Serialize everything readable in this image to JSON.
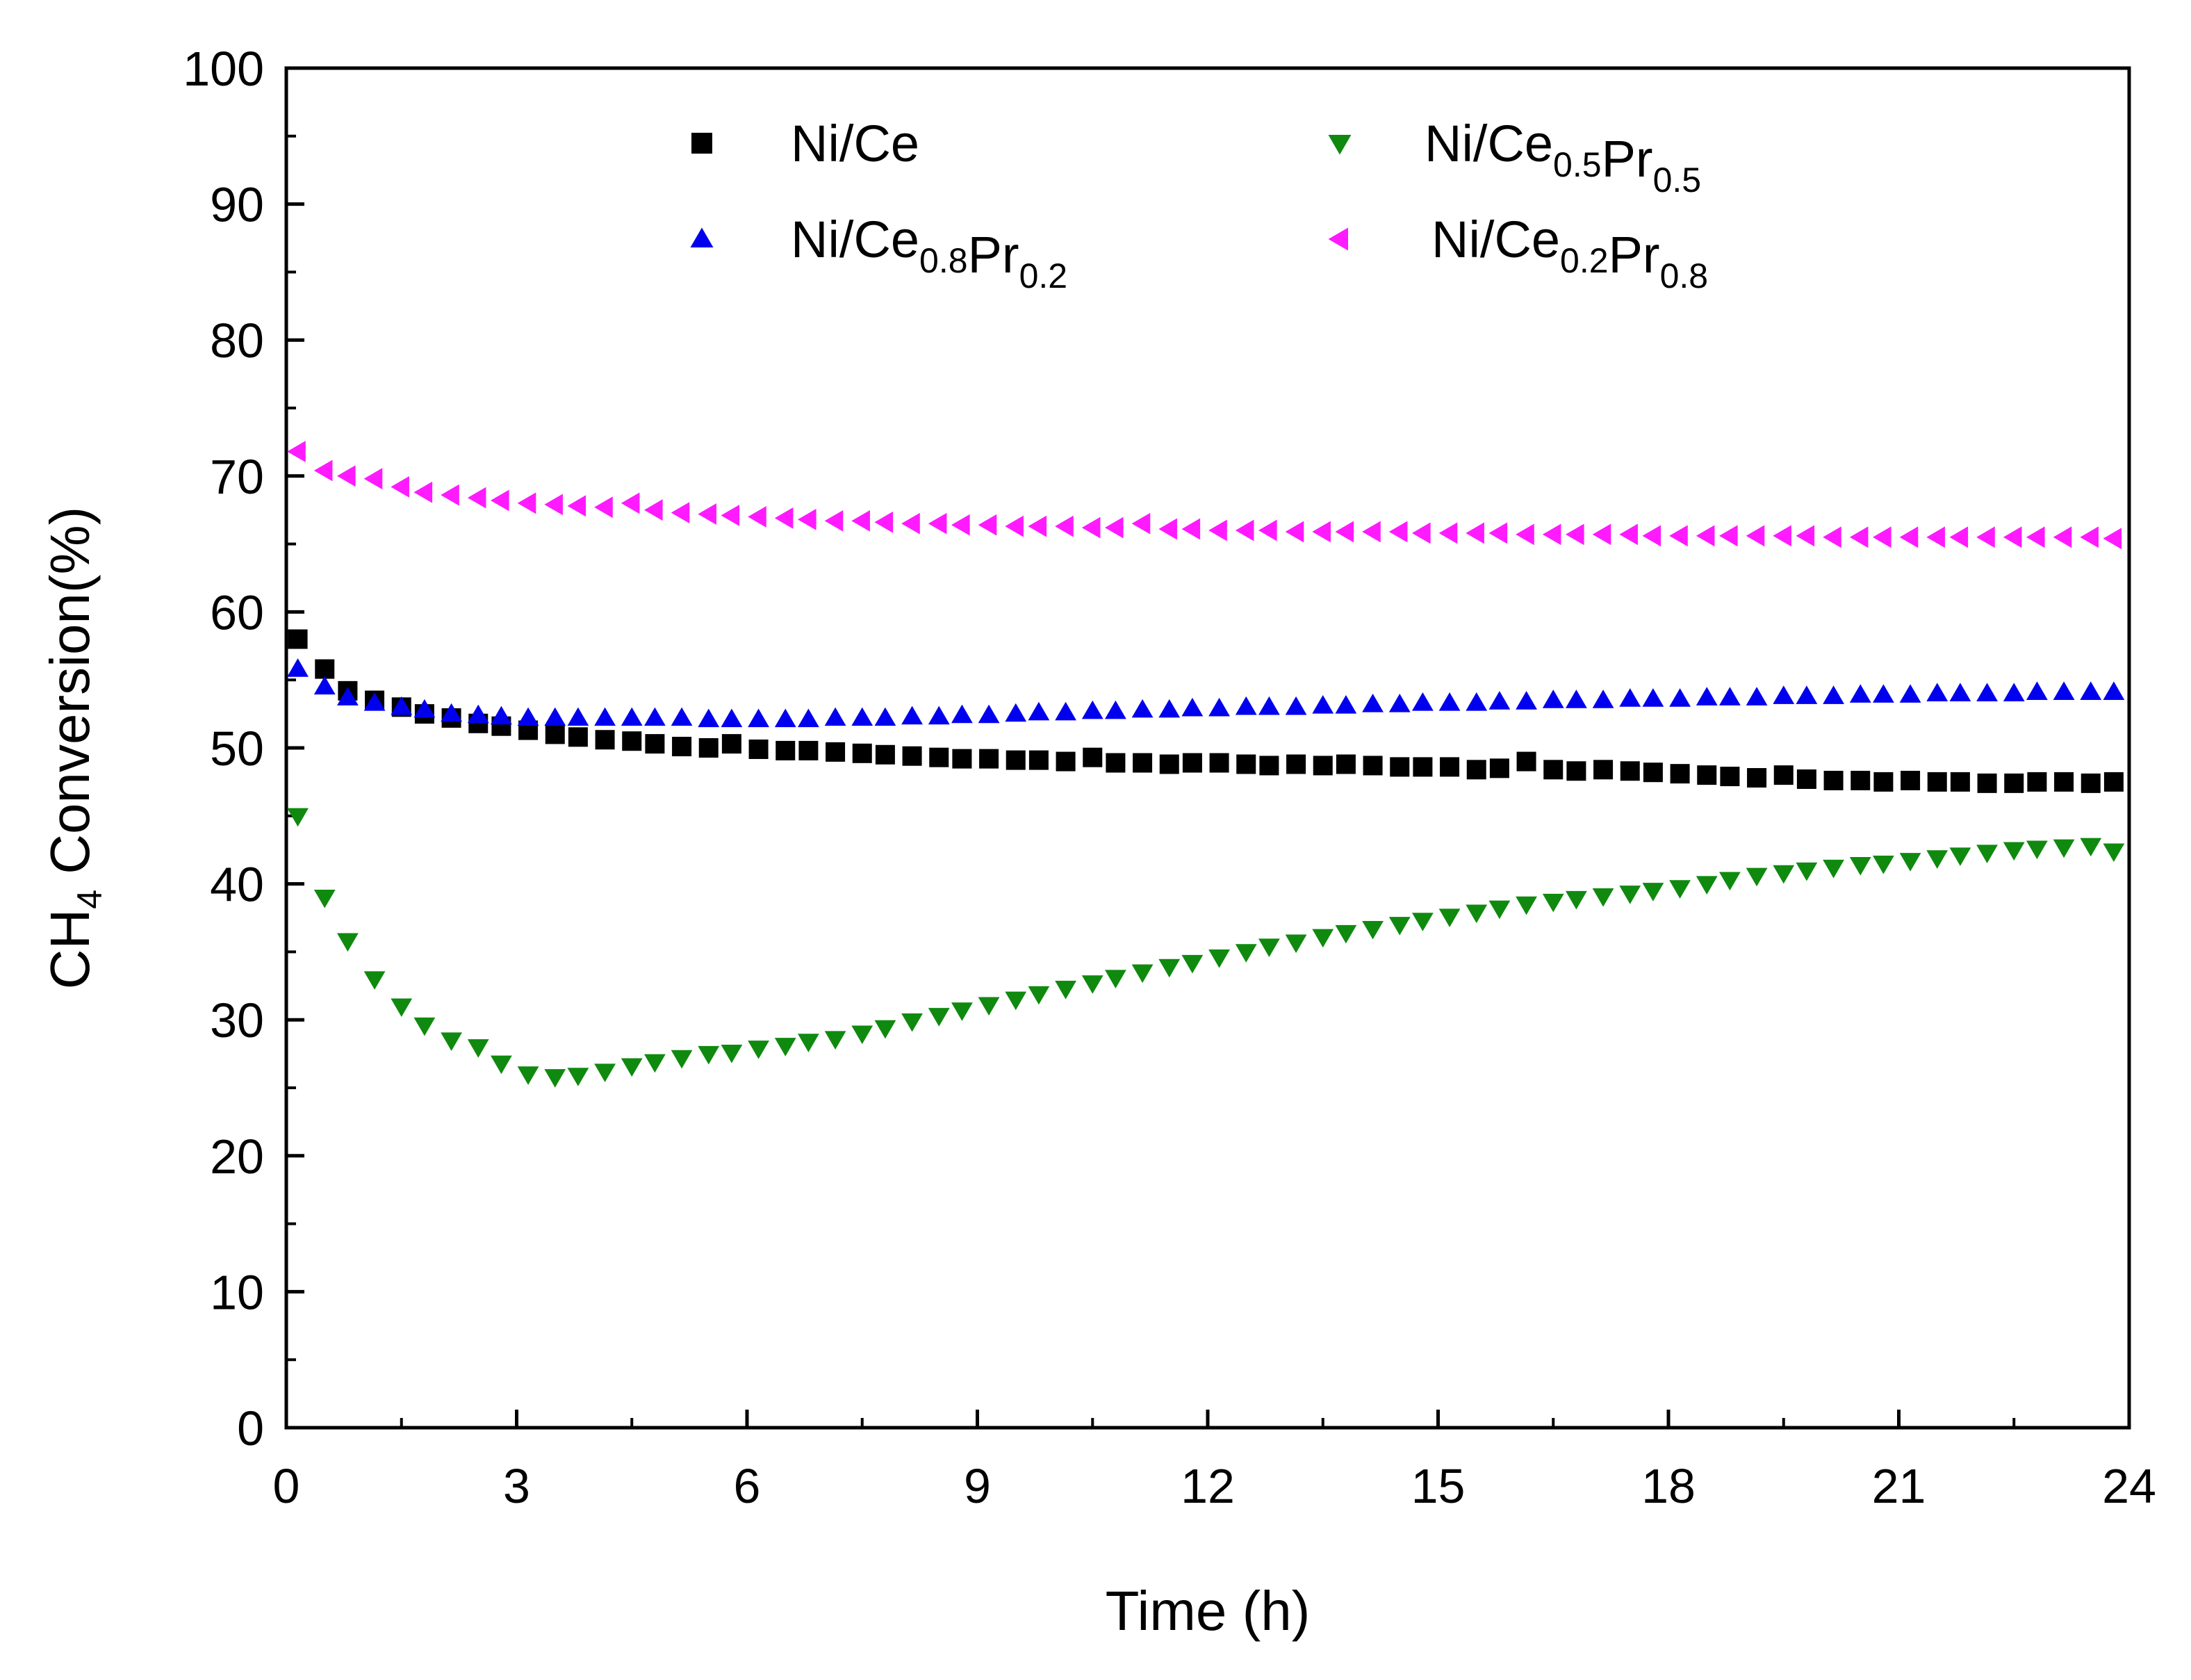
{
  "chart_data": {
    "type": "scatter",
    "title": "",
    "xlabel": "Time (h)",
    "ylabel": {
      "prefix": "CH",
      "subscript": "4",
      "suffix": " Conversion(%)"
    },
    "xlim": [
      0,
      24
    ],
    "ylim": [
      0,
      100
    ],
    "xticks": [
      0,
      3,
      6,
      9,
      12,
      15,
      18,
      21,
      24
    ],
    "yticks": [
      0,
      10,
      20,
      30,
      40,
      50,
      60,
      70,
      80,
      90,
      100
    ],
    "grid": false,
    "legend_position": "top",
    "series": [
      {
        "name": "Ni/Ce",
        "label_parts": [
          {
            "text": "Ni/Ce",
            "sub": ""
          }
        ],
        "marker": "square",
        "color": "#000000",
        "x": [
          0.15,
          0.5,
          0.8,
          1.15,
          1.5,
          1.8,
          2.15,
          2.5,
          2.8,
          3.15,
          3.5,
          3.8,
          4.15,
          4.5,
          4.8,
          5.15,
          5.5,
          5.8,
          6.15,
          6.5,
          6.8,
          7.15,
          7.5,
          7.8,
          8.15,
          8.5,
          8.8,
          9.15,
          9.5,
          9.8,
          10.15,
          10.5,
          10.8,
          11.15,
          11.5,
          11.8,
          12.15,
          12.5,
          12.8,
          13.15,
          13.5,
          13.8,
          14.15,
          14.5,
          14.8,
          15.15,
          15.5,
          15.8,
          16.15,
          16.5,
          16.8,
          17.15,
          17.5,
          17.8,
          18.15,
          18.5,
          18.8,
          19.15,
          19.5,
          19.8,
          20.15,
          20.5,
          20.8,
          21.15,
          21.5,
          21.8,
          22.15,
          22.5,
          22.8,
          23.15,
          23.5,
          23.8
        ],
        "y": [
          58.0,
          55.8,
          54.2,
          53.5,
          53.0,
          52.5,
          52.2,
          51.8,
          51.6,
          51.3,
          51.0,
          50.8,
          50.6,
          50.5,
          50.3,
          50.1,
          50.0,
          50.3,
          49.9,
          49.8,
          49.8,
          49.7,
          49.6,
          49.5,
          49.4,
          49.3,
          49.2,
          49.2,
          49.1,
          49.1,
          49.0,
          49.3,
          48.9,
          48.9,
          48.8,
          48.9,
          48.9,
          48.8,
          48.7,
          48.8,
          48.7,
          48.8,
          48.7,
          48.6,
          48.6,
          48.6,
          48.4,
          48.5,
          49.0,
          48.4,
          48.3,
          48.4,
          48.3,
          48.2,
          48.1,
          48.0,
          47.9,
          47.8,
          48.0,
          47.7,
          47.6,
          47.6,
          47.5,
          47.6,
          47.5,
          47.5,
          47.4,
          47.4,
          47.5,
          47.5,
          47.4,
          47.5
        ]
      },
      {
        "name": "Ni/Ce0.8Pr0.2",
        "label_parts": [
          {
            "text": "Ni/Ce",
            "sub": "0.8"
          },
          {
            "text": "Pr",
            "sub": "0.2"
          }
        ],
        "marker": "triangle-up",
        "color": "#0000ee",
        "x": [
          0.15,
          0.5,
          0.8,
          1.15,
          1.5,
          1.8,
          2.15,
          2.5,
          2.8,
          3.15,
          3.5,
          3.8,
          4.15,
          4.5,
          4.8,
          5.15,
          5.5,
          5.8,
          6.15,
          6.5,
          6.8,
          7.15,
          7.5,
          7.8,
          8.15,
          8.5,
          8.8,
          9.15,
          9.5,
          9.8,
          10.15,
          10.5,
          10.8,
          11.15,
          11.5,
          11.8,
          12.15,
          12.5,
          12.8,
          13.15,
          13.5,
          13.8,
          14.15,
          14.5,
          14.8,
          15.15,
          15.5,
          15.8,
          16.15,
          16.5,
          16.8,
          17.15,
          17.5,
          17.8,
          18.15,
          18.5,
          18.8,
          19.15,
          19.5,
          19.8,
          20.15,
          20.5,
          20.8,
          21.15,
          21.5,
          21.8,
          22.15,
          22.5,
          22.8,
          23.15,
          23.5,
          23.8
        ],
        "y": [
          55.8,
          54.5,
          53.7,
          53.3,
          53.0,
          52.8,
          52.5,
          52.4,
          52.3,
          52.2,
          52.2,
          52.2,
          52.2,
          52.2,
          52.2,
          52.2,
          52.1,
          52.1,
          52.1,
          52.1,
          52.1,
          52.2,
          52.2,
          52.2,
          52.3,
          52.3,
          52.4,
          52.4,
          52.5,
          52.6,
          52.6,
          52.7,
          52.7,
          52.8,
          52.8,
          52.9,
          52.9,
          53.0,
          53.0,
          53.0,
          53.1,
          53.1,
          53.2,
          53.2,
          53.3,
          53.3,
          53.3,
          53.4,
          53.4,
          53.5,
          53.5,
          53.5,
          53.6,
          53.6,
          53.6,
          53.7,
          53.7,
          53.7,
          53.8,
          53.8,
          53.8,
          53.9,
          53.9,
          53.9,
          54.0,
          54.0,
          54.0,
          54.0,
          54.1,
          54.1,
          54.1,
          54.1
        ]
      },
      {
        "name": "Ni/Ce0.5Pr0.5",
        "label_parts": [
          {
            "text": "Ni/Ce",
            "sub": "0.5"
          },
          {
            "text": "Pr",
            "sub": "0.5"
          }
        ],
        "marker": "triangle-down",
        "color": "#0f8a0f",
        "x": [
          0.15,
          0.5,
          0.8,
          1.15,
          1.5,
          1.8,
          2.15,
          2.5,
          2.8,
          3.15,
          3.5,
          3.8,
          4.15,
          4.5,
          4.8,
          5.15,
          5.5,
          5.8,
          6.15,
          6.5,
          6.8,
          7.15,
          7.5,
          7.8,
          8.15,
          8.5,
          8.8,
          9.15,
          9.5,
          9.8,
          10.15,
          10.5,
          10.8,
          11.15,
          11.5,
          11.8,
          12.15,
          12.5,
          12.8,
          13.15,
          13.5,
          13.8,
          14.15,
          14.5,
          14.8,
          15.15,
          15.5,
          15.8,
          16.15,
          16.5,
          16.8,
          17.15,
          17.5,
          17.8,
          18.15,
          18.5,
          18.8,
          19.15,
          19.5,
          19.8,
          20.15,
          20.5,
          20.8,
          21.15,
          21.5,
          21.8,
          22.15,
          22.5,
          22.8,
          23.15,
          23.5,
          23.8
        ],
        "y": [
          45.0,
          39.0,
          35.8,
          33.0,
          31.0,
          29.6,
          28.5,
          28.0,
          26.8,
          26.0,
          25.8,
          25.9,
          26.2,
          26.6,
          26.9,
          27.2,
          27.5,
          27.6,
          27.9,
          28.1,
          28.4,
          28.6,
          29.0,
          29.4,
          29.9,
          30.3,
          30.7,
          31.1,
          31.5,
          31.9,
          32.3,
          32.7,
          33.1,
          33.5,
          33.9,
          34.2,
          34.6,
          35.0,
          35.4,
          35.7,
          36.1,
          36.4,
          36.7,
          37.0,
          37.3,
          37.6,
          37.9,
          38.2,
          38.5,
          38.7,
          38.9,
          39.1,
          39.3,
          39.5,
          39.7,
          40.0,
          40.3,
          40.6,
          40.8,
          41.0,
          41.2,
          41.4,
          41.5,
          41.7,
          41.9,
          42.1,
          42.3,
          42.5,
          42.6,
          42.7,
          42.8,
          42.4
        ]
      },
      {
        "name": "Ni/Ce0.2Pr0.8",
        "label_parts": [
          {
            "text": "Ni/Ce",
            "sub": "0.2"
          },
          {
            "text": "Pr",
            "sub": "0.8"
          }
        ],
        "marker": "triangle-left",
        "color": "#ff1aff",
        "x": [
          0.15,
          0.5,
          0.8,
          1.15,
          1.5,
          1.8,
          2.15,
          2.5,
          2.8,
          3.15,
          3.5,
          3.8,
          4.15,
          4.5,
          4.8,
          5.15,
          5.5,
          5.8,
          6.15,
          6.5,
          6.8,
          7.15,
          7.5,
          7.8,
          8.15,
          8.5,
          8.8,
          9.15,
          9.5,
          9.8,
          10.15,
          10.5,
          10.8,
          11.15,
          11.5,
          11.8,
          12.15,
          12.5,
          12.8,
          13.15,
          13.5,
          13.8,
          14.15,
          14.5,
          14.8,
          15.15,
          15.5,
          15.8,
          16.15,
          16.5,
          16.8,
          17.15,
          17.5,
          17.8,
          18.15,
          18.5,
          18.8,
          19.15,
          19.5,
          19.8,
          20.15,
          20.5,
          20.8,
          21.15,
          21.5,
          21.8,
          22.15,
          22.5,
          22.8,
          23.15,
          23.5,
          23.8
        ],
        "y": [
          71.8,
          70.4,
          70.0,
          69.8,
          69.2,
          68.8,
          68.6,
          68.4,
          68.2,
          68.0,
          67.9,
          67.8,
          67.7,
          68.0,
          67.5,
          67.3,
          67.2,
          67.1,
          67.0,
          66.9,
          66.8,
          66.7,
          66.7,
          66.6,
          66.5,
          66.5,
          66.4,
          66.4,
          66.3,
          66.3,
          66.3,
          66.2,
          66.2,
          66.5,
          66.1,
          66.1,
          66.0,
          66.0,
          66.0,
          65.9,
          65.9,
          65.9,
          65.9,
          65.9,
          65.8,
          65.8,
          65.8,
          65.8,
          65.7,
          65.7,
          65.7,
          65.7,
          65.7,
          65.6,
          65.6,
          65.6,
          65.6,
          65.6,
          65.6,
          65.6,
          65.5,
          65.5,
          65.5,
          65.5,
          65.5,
          65.5,
          65.5,
          65.5,
          65.5,
          65.5,
          65.5,
          65.4
        ]
      }
    ]
  }
}
